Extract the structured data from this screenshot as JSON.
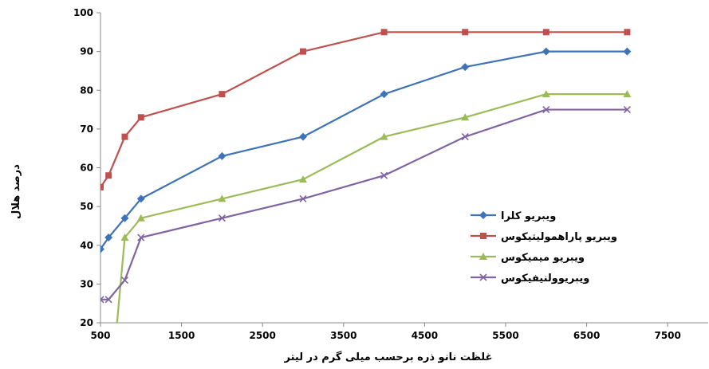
{
  "chart_data": {
    "type": "line",
    "xlabel": "غلظت نانو ذره برحسب میلی گرم در لیتر",
    "ylabel": "درصد هلال",
    "xlim": [
      500,
      8000
    ],
    "ylim": [
      20,
      100
    ],
    "x_ticks": [
      500,
      1500,
      2500,
      3500,
      4500,
      5500,
      6500,
      7500
    ],
    "y_ticks": [
      20,
      30,
      40,
      50,
      60,
      70,
      80,
      90,
      100
    ],
    "grid": false,
    "legend_position": "right",
    "series": [
      {
        "name": "ویبریو کلرا",
        "color": "#3f73b8",
        "marker": "diamond",
        "points": [
          [
            500,
            39
          ],
          [
            600,
            42
          ],
          [
            800,
            47
          ],
          [
            1000,
            52
          ],
          [
            2000,
            63
          ],
          [
            3000,
            68
          ],
          [
            4000,
            79
          ],
          [
            5000,
            86
          ],
          [
            6000,
            90
          ],
          [
            7000,
            90
          ]
        ]
      },
      {
        "name": "ویبریو پاراهمولیتیکوس",
        "color": "#c0504d",
        "marker": "square",
        "points": [
          [
            500,
            55
          ],
          [
            600,
            58
          ],
          [
            800,
            68
          ],
          [
            1000,
            73
          ],
          [
            2000,
            79
          ],
          [
            3000,
            90
          ],
          [
            4000,
            95
          ],
          [
            5000,
            95
          ],
          [
            6000,
            95
          ],
          [
            7000,
            95
          ]
        ]
      },
      {
        "name": "ویبریو میمیکوس",
        "color": "#9bbb59",
        "marker": "triangle",
        "points": [
          [
            700,
            19
          ],
          [
            800,
            42
          ],
          [
            1000,
            47
          ],
          [
            2000,
            52
          ],
          [
            3000,
            57
          ],
          [
            4000,
            68
          ],
          [
            5000,
            73
          ],
          [
            6000,
            79
          ],
          [
            7000,
            79
          ]
        ]
      },
      {
        "name": "ویبریوولنیفیکوس",
        "color": "#8064a2",
        "marker": "x",
        "points": [
          [
            500,
            26
          ],
          [
            600,
            26
          ],
          [
            800,
            31
          ],
          [
            1000,
            42
          ],
          [
            2000,
            47
          ],
          [
            3000,
            52
          ],
          [
            4000,
            58
          ],
          [
            5000,
            68
          ],
          [
            6000,
            75
          ],
          [
            7000,
            75
          ]
        ]
      }
    ]
  }
}
